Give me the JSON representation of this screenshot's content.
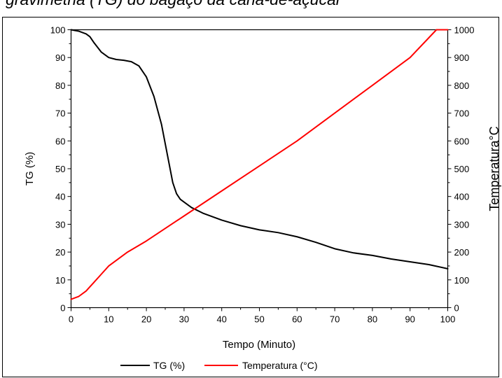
{
  "chart_data": {
    "type": "line",
    "title": "gravimetria (TG) do bagaço da cana-de-açúcar",
    "xlabel": "Tempo (Minuto)",
    "ylabel": "TG (%)",
    "y2label": "Temperatura°C",
    "xlim": [
      0,
      100
    ],
    "ylim": [
      0,
      100
    ],
    "y2lim": [
      0,
      1000
    ],
    "x_ticks": [
      "0",
      "10",
      "20",
      "30",
      "40",
      "50",
      "60",
      "70",
      "80",
      "90",
      "100"
    ],
    "y_ticks": [
      "0",
      "10",
      "20",
      "30",
      "40",
      "50",
      "60",
      "70",
      "80",
      "90",
      "100"
    ],
    "y2_ticks": [
      "0",
      "100",
      "200",
      "300",
      "400",
      "500",
      "600",
      "700",
      "800",
      "900",
      "1000"
    ],
    "grid": false,
    "legend_position": "bottom",
    "series": [
      {
        "name": "TG (%)",
        "color": "#000000",
        "axis": "left",
        "x": [
          0,
          2,
          4,
          5,
          6,
          8,
          10,
          12,
          14,
          16,
          18,
          20,
          22,
          24,
          25,
          26,
          27,
          28,
          29,
          30,
          32,
          35,
          40,
          45,
          50,
          55,
          60,
          65,
          70,
          75,
          80,
          85,
          90,
          95,
          100
        ],
        "values": [
          100,
          99.5,
          98.5,
          97.5,
          95.5,
          92,
          90,
          89.3,
          89,
          88.5,
          87,
          83,
          76,
          66,
          59,
          52,
          45,
          41,
          39,
          38,
          36,
          34,
          31.5,
          29.5,
          28,
          27,
          25.5,
          23.5,
          21.2,
          19.7,
          18.8,
          17.5,
          16.5,
          15.5,
          14
        ]
      },
      {
        "name": "Temperatura (°C)",
        "color": "#ff0000",
        "axis": "right",
        "x": [
          0,
          2,
          4,
          6,
          8,
          10,
          15,
          20,
          30,
          40,
          50,
          60,
          70,
          80,
          90,
          97,
          100
        ],
        "values": [
          30,
          40,
          60,
          90,
          120,
          150,
          200,
          240,
          330,
          420,
          510,
          600,
          700,
          800,
          900,
          1000,
          1000
        ]
      }
    ]
  }
}
